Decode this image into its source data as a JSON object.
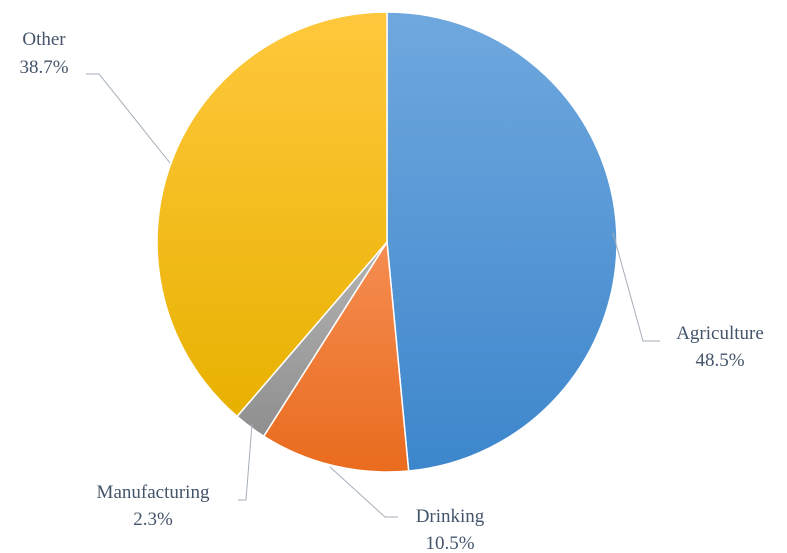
{
  "chart_data": {
    "type": "pie",
    "title": "",
    "slices": [
      {
        "label": "Agriculture",
        "value": 48.5,
        "value_label": "48.5%",
        "color_top": "#6fa8de",
        "color_bottom": "#3d86cc"
      },
      {
        "label": "Drinking",
        "value": 10.5,
        "value_label": "10.5%",
        "color_top": "#f58d52",
        "color_bottom": "#e96b1e"
      },
      {
        "label": "Manufacturing",
        "value": 2.3,
        "value_label": "2.3%",
        "color_top": "#b4b4b4",
        "color_bottom": "#8f8f8f"
      },
      {
        "label": "Other",
        "value": 38.7,
        "value_label": "38.7%",
        "color_top": "#ffc83d",
        "color_bottom": "#e8b100"
      }
    ],
    "start_angle_deg": 0,
    "direction": "clockwise",
    "legend": "none",
    "data_labels": "outside with leader lines"
  }
}
